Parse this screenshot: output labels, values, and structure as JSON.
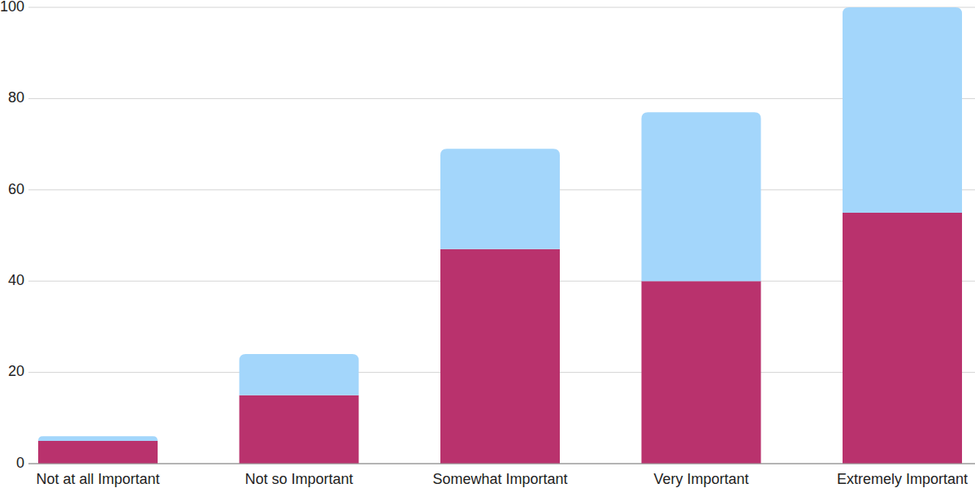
{
  "chart_data": {
    "type": "bar",
    "stacked": true,
    "grid": true,
    "categories": [
      "Not at all Important",
      "Not so Important",
      "Somewhat Important",
      "Very Important",
      "Extremely Important"
    ],
    "series": [
      {
        "color": "#b9326d",
        "values": [
          5,
          15,
          47,
          40,
          55
        ]
      },
      {
        "color": "#a3d6fb",
        "values": [
          1,
          9,
          22,
          37,
          45
        ]
      }
    ],
    "ylim": [
      0,
      100
    ],
    "yticks": [
      0,
      20,
      40,
      60,
      80,
      100
    ]
  }
}
